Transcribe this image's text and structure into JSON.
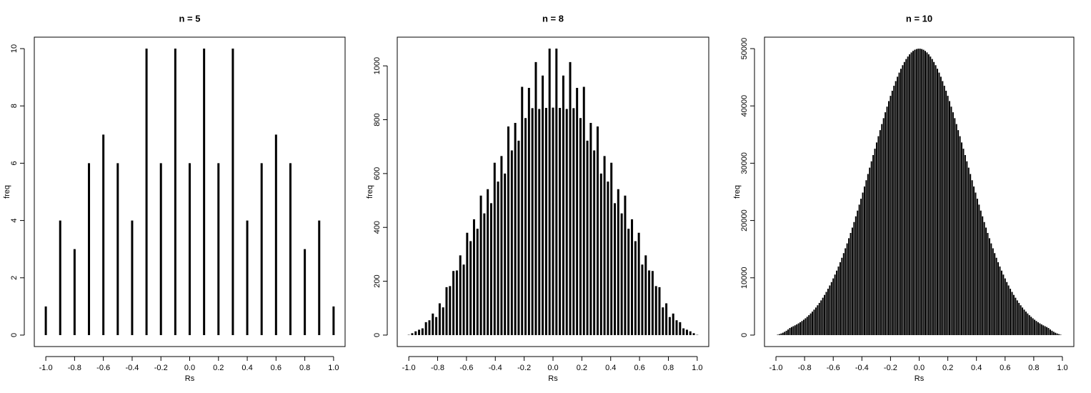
{
  "chart_data": [
    {
      "type": "bar",
      "title": "n = 5",
      "x_label": "Rs",
      "y_label": "freq",
      "color": "#000000",
      "x": [
        -1,
        -0.9,
        -0.8,
        -0.7,
        -0.6,
        -0.5,
        -0.4,
        -0.3,
        -0.2,
        -0.1,
        0,
        0.1,
        0.2,
        0.3,
        0.4,
        0.5,
        0.6,
        0.7,
        0.8,
        0.9,
        1
      ],
      "values": [
        1,
        4,
        3,
        6,
        7,
        6,
        4,
        10,
        6,
        10,
        6,
        10,
        6,
        10,
        4,
        6,
        7,
        6,
        3,
        4,
        1
      ],
      "xlim": [
        -1.08,
        1.08
      ],
      "ylim": [
        -0.4,
        10.4
      ],
      "xticks": [
        {
          "value": -1,
          "label": "-1.0"
        },
        -0.8,
        -0.6,
        -0.4,
        -0.2,
        {
          "value": 0,
          "label": "0.0"
        },
        0.2,
        0.4,
        0.6,
        0.8,
        {
          "value": 1,
          "label": "1.0"
        }
      ],
      "yticks": [
        0,
        2,
        4,
        6,
        8,
        10
      ]
    },
    {
      "type": "bar",
      "title": "n = 8",
      "x_label": "Rs",
      "y_label": "freq",
      "color": "#000000",
      "x": [
        -1,
        -0.9762,
        -0.9524,
        -0.9286,
        -0.9048,
        -0.881,
        -0.8571,
        -0.8333,
        -0.8095,
        -0.7857,
        -0.7619,
        -0.7381,
        -0.7143,
        -0.6905,
        -0.6667,
        -0.6429,
        -0.619,
        -0.5952,
        -0.5714,
        -0.5476,
        -0.5238,
        -0.5,
        -0.4762,
        -0.4524,
        -0.4286,
        -0.4048,
        -0.381,
        -0.3571,
        -0.3333,
        -0.3095,
        -0.2857,
        -0.2619,
        -0.2381,
        -0.2143,
        -0.1905,
        -0.1667,
        -0.1429,
        -0.119,
        -0.0952,
        -0.0714,
        -0.0476,
        -0.0238,
        0,
        0.0238,
        0.0476,
        0.0714,
        0.0952,
        0.119,
        0.1429,
        0.1667,
        0.1905,
        0.2143,
        0.2381,
        0.2619,
        0.2857,
        0.3095,
        0.3333,
        0.3571,
        0.381,
        0.4048,
        0.4286,
        0.4524,
        0.4762,
        0.5,
        0.5238,
        0.5476,
        0.5714,
        0.5952,
        0.619,
        0.6429,
        0.6667,
        0.6905,
        0.7143,
        0.7381,
        0.7619,
        0.7857,
        0.8095,
        0.8333,
        0.8571,
        0.881,
        0.9048,
        0.9286,
        0.9524,
        0.9762,
        1
      ],
      "values": [
        1,
        7,
        14,
        20,
        25,
        48,
        55,
        80,
        67,
        118,
        103,
        178,
        182,
        238,
        240,
        296,
        262,
        380,
        349,
        430,
        395,
        518,
        452,
        542,
        490,
        640,
        570,
        665,
        600,
        775,
        686,
        788,
        722,
        922,
        806,
        918,
        843,
        1014,
        840,
        964,
        844,
        1064,
        845,
        1064,
        844,
        964,
        840,
        1014,
        843,
        918,
        806,
        922,
        722,
        788,
        686,
        775,
        600,
        665,
        570,
        640,
        490,
        542,
        452,
        518,
        395,
        430,
        349,
        380,
        262,
        296,
        240,
        238,
        182,
        178,
        103,
        118,
        67,
        80,
        55,
        48,
        25,
        20,
        14,
        7,
        1
      ],
      "xlim": [
        -1.08,
        1.08
      ],
      "ylim": [
        -42.6,
        1106.6
      ],
      "xticks": [
        {
          "value": -1,
          "label": "-1.0"
        },
        -0.8,
        -0.6,
        -0.4,
        -0.2,
        {
          "value": 0,
          "label": "0.0"
        },
        0.2,
        0.4,
        0.6,
        0.8,
        {
          "value": 1,
          "label": "1.0"
        }
      ],
      "yticks": [
        0,
        200,
        400,
        600,
        800,
        1000
      ]
    },
    {
      "type": "bar",
      "title": "n = 10",
      "x_label": "Rs",
      "y_label": "freq",
      "color": "#000000",
      "x": [
        -1,
        -0.9879,
        -0.9758,
        -0.9636,
        -0.9515,
        -0.9394,
        -0.9273,
        -0.9152,
        -0.903,
        -0.8909,
        -0.8788,
        -0.8667,
        -0.8545,
        -0.8424,
        -0.8303,
        -0.8182,
        -0.8061,
        -0.7939,
        -0.7818,
        -0.7697,
        -0.7576,
        -0.7455,
        -0.7333,
        -0.7212,
        -0.7091,
        -0.697,
        -0.6848,
        -0.6727,
        -0.6606,
        -0.6485,
        -0.6364,
        -0.6242,
        -0.6121,
        -0.6,
        -0.5879,
        -0.5758,
        -0.5636,
        -0.5515,
        -0.5394,
        -0.5273,
        -0.5152,
        -0.503,
        -0.4909,
        -0.4788,
        -0.4667,
        -0.4545,
        -0.4424,
        -0.4303,
        -0.4182,
        -0.4061,
        -0.3939,
        -0.3818,
        -0.3697,
        -0.3576,
        -0.3455,
        -0.3333,
        -0.3212,
        -0.3091,
        -0.297,
        -0.2848,
        -0.2727,
        -0.2606,
        -0.2485,
        -0.2364,
        -0.2242,
        -0.2121,
        -0.2,
        -0.1879,
        -0.1758,
        -0.1636,
        -0.1515,
        -0.1394,
        -0.1273,
        -0.1152,
        -0.103,
        -0.0909,
        -0.0788,
        -0.0667,
        -0.0545,
        -0.0424,
        -0.0303,
        -0.0182,
        -0.0061,
        0.0061,
        0.0182,
        0.0303,
        0.0424,
        0.0545,
        0.0667,
        0.0788,
        0.0909,
        0.103,
        0.1152,
        0.1273,
        0.1394,
        0.1515,
        0.1636,
        0.1758,
        0.1879,
        0.2,
        0.2121,
        0.2242,
        0.2364,
        0.2485,
        0.2606,
        0.2727,
        0.2848,
        0.297,
        0.3091,
        0.3212,
        0.3333,
        0.3455,
        0.3576,
        0.3697,
        0.3818,
        0.3939,
        0.4061,
        0.4182,
        0.4303,
        0.4424,
        0.4545,
        0.4667,
        0.4788,
        0.4909,
        0.503,
        0.5152,
        0.5273,
        0.5394,
        0.5515,
        0.5636,
        0.5758,
        0.5879,
        0.6,
        0.6121,
        0.6242,
        0.6364,
        0.6485,
        0.6606,
        0.6727,
        0.6848,
        0.697,
        0.7091,
        0.7212,
        0.7333,
        0.7455,
        0.7576,
        0.7697,
        0.7818,
        0.7939,
        0.8061,
        0.8182,
        0.8303,
        0.8424,
        0.8545,
        0.8667,
        0.8788,
        0.8909,
        0.903,
        0.9152,
        0.9273,
        0.9394,
        0.9515,
        0.9636,
        0.9758,
        0.9879,
        1
      ],
      "values": [
        1,
        75,
        167,
        279,
        412,
        571,
        759,
        979,
        1236,
        1405,
        1548,
        1702,
        1870,
        2051,
        2247,
        2459,
        2687,
        2931,
        3195,
        3476,
        3779,
        4101,
        4446,
        4814,
        5204,
        5618,
        6058,
        6525,
        7016,
        7535,
        8083,
        8657,
        9262,
        9895,
        10557,
        11249,
        11970,
        12721,
        13502,
        14310,
        15147,
        16012,
        16904,
        17822,
        18766,
        19732,
        20723,
        21733,
        22764,
        23807,
        24869,
        25943,
        27029,
        28124,
        29225,
        30327,
        31429,
        32529,
        33621,
        34707,
        35779,
        36835,
        37868,
        38885,
        39874,
        40835,
        41764,
        42654,
        43512,
        44324,
        45093,
        45816,
        46485,
        47103,
        47667,
        48175,
        48624,
        49010,
        49334,
        49597,
        49795,
        49926,
        49992,
        49992,
        49926,
        49795,
        49597,
        49334,
        49010,
        48624,
        48175,
        47667,
        47103,
        46485,
        45816,
        45093,
        44324,
        43512,
        42654,
        41764,
        40835,
        39874,
        38885,
        37868,
        36835,
        35779,
        34707,
        33621,
        32529,
        31429,
        30327,
        29225,
        28124,
        27029,
        25943,
        24869,
        23807,
        22764,
        21733,
        20723,
        19732,
        18766,
        17822,
        16904,
        16012,
        15147,
        14310,
        13502,
        12721,
        11970,
        11249,
        10557,
        9895,
        9262,
        8657,
        8083,
        7535,
        7016,
        6525,
        6058,
        5618,
        5204,
        4814,
        4446,
        4101,
        3779,
        3476,
        3195,
        2931,
        2687,
        2459,
        2247,
        2051,
        1870,
        1702,
        1548,
        1405,
        1236,
        979,
        759,
        571,
        412,
        279,
        167,
        75,
        1
      ],
      "xlim": [
        -1.08,
        1.08
      ],
      "ylim": [
        -2000,
        52000
      ],
      "xticks": [
        {
          "value": -1,
          "label": "-1.0"
        },
        -0.8,
        -0.6,
        -0.4,
        -0.2,
        {
          "value": 0,
          "label": "0.0"
        },
        0.2,
        0.4,
        0.6,
        0.8,
        {
          "value": 1,
          "label": "1.0"
        }
      ],
      "yticks": [
        0,
        10000,
        20000,
        30000,
        40000,
        50000
      ]
    }
  ]
}
